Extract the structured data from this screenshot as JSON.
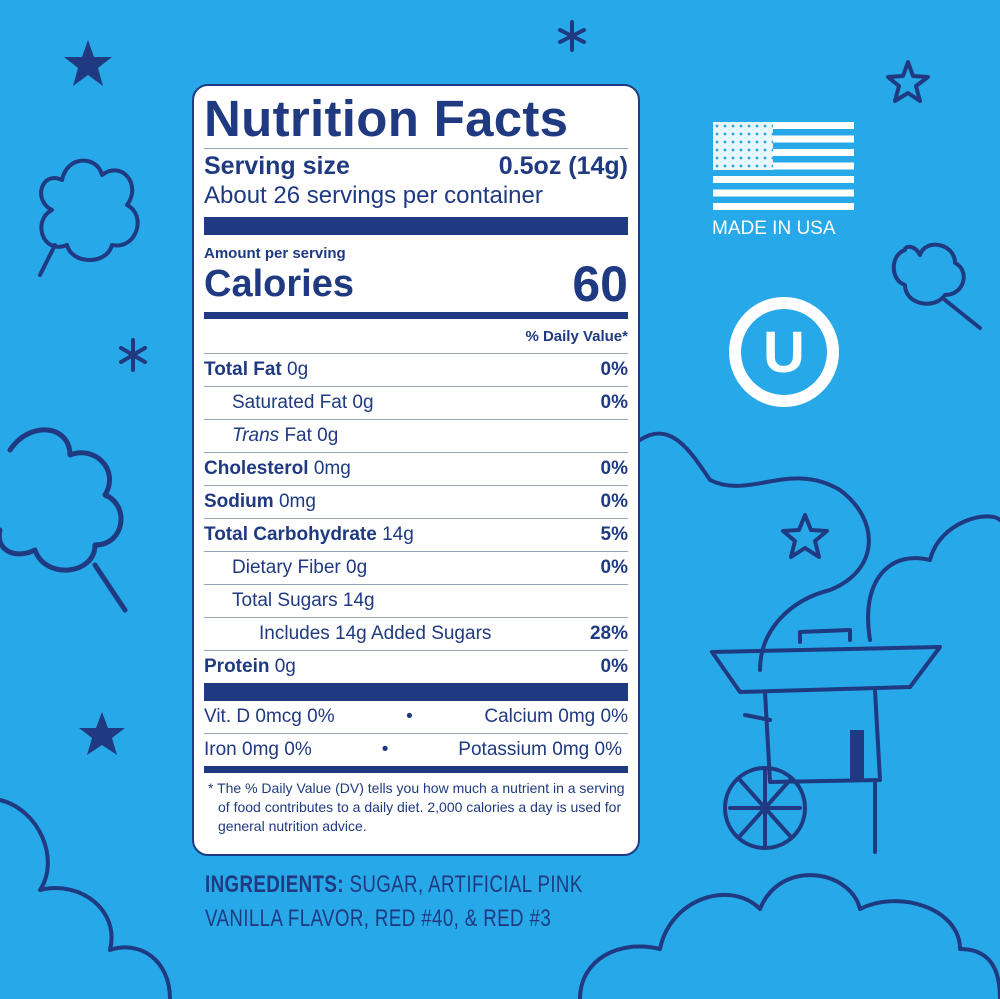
{
  "colors": {
    "background": "#27a8e8",
    "navy": "#1f3a80",
    "label_bg": "#ffffff"
  },
  "label": {
    "title": "Nutrition Facts",
    "serving_size_label": "Serving size",
    "serving_size_value": "0.5oz (14g)",
    "servings_per_container": "About 26 servings per container",
    "amount_per_serving": "Amount per serving",
    "calories_label": "Calories",
    "calories_value": "60",
    "daily_value_header": "% Daily Value*",
    "nutrients": [
      {
        "name": "Total Fat",
        "amount": "0g",
        "dv": "0%"
      },
      {
        "name": "Saturated Fat",
        "amount": "0g",
        "dv": "0%"
      },
      {
        "name": "Trans",
        "suffix": "Fat 0g",
        "dv": ""
      },
      {
        "name": "Cholesterol",
        "amount": "0mg",
        "dv": "0%"
      },
      {
        "name": "Sodium",
        "amount": "0mg",
        "dv": "0%"
      },
      {
        "name": "Total Carbohydrate",
        "amount": "14g",
        "dv": "5%"
      },
      {
        "name": "Dietary Fiber",
        "amount": "0g",
        "dv": "0%"
      },
      {
        "name": "Total Sugars",
        "amount": "14g",
        "dv": ""
      },
      {
        "name": "Includes 14g Added Sugars",
        "amount": "",
        "dv": "28%"
      },
      {
        "name": "Protein",
        "amount": "0g",
        "dv": "0%"
      }
    ],
    "vitamins": [
      {
        "left": "Vit. D 0mcg 0%",
        "right": "Calcium 0mg 0%"
      },
      {
        "left": "Iron 0mg 0%",
        "right": "Potassium 0mg 0%"
      }
    ],
    "bullet": "•",
    "footnote": "* The % Daily Value (DV) tells you how much a nutrient in a serving of food contributes to a daily diet. 2,000 calories a day is used for general nutrition advice."
  },
  "ingredients": {
    "label": "INGREDIENTS:",
    "text": " SUGAR, ARTIFICIAL PINK VANILLA FLAVOR, RED #40, & RED #3"
  },
  "badges": {
    "made_in": "MADE IN USA",
    "kosher_letter": "U",
    "flag_icon": "us-flag-icon",
    "kosher_icon": "kosher-u-icon"
  }
}
